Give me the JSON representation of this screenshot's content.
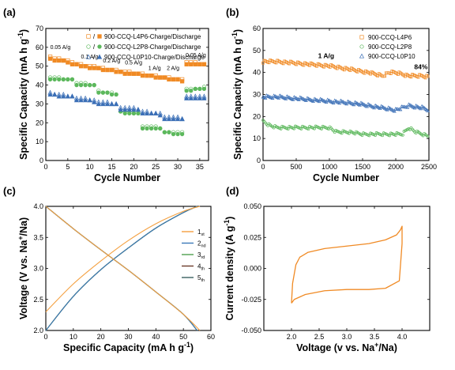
{
  "chart_data": [
    {
      "panel": "(a)",
      "type": "scatter",
      "xlabel": "Cycle Number",
      "ylabel": "Specific Capacity (mA h g⁻¹)",
      "xlim": [
        0,
        37
      ],
      "ylim": [
        0,
        70
      ],
      "xticks": [
        0,
        5,
        10,
        15,
        20,
        25,
        30,
        35
      ],
      "yticks": [
        0,
        10,
        20,
        30,
        40,
        50,
        60,
        70
      ],
      "legend_position": "top-right",
      "legend_separator": "/",
      "rate_labels": [
        {
          "text": "0.05 A/g",
          "x": 1,
          "y": 59
        },
        {
          "text": "0.1 A/g",
          "x": 8,
          "y": 54
        },
        {
          "text": "0.2 A/g",
          "x": 13,
          "y": 52
        },
        {
          "text": "0.5 A/g",
          "x": 18,
          "y": 51
        },
        {
          "text": "1 A/g",
          "x": 23.3,
          "y": 48
        },
        {
          "text": "2 A/g",
          "x": 27.5,
          "y": 48
        },
        {
          "text": "0.05 A/g",
          "x": 31.8,
          "y": 55
        }
      ],
      "series": [
        {
          "name": "900-CCQ-L4P6-Charge/Discharge",
          "color": "#f08a24",
          "marker": "square",
          "x": [
            1,
            2,
            3,
            4,
            5,
            6,
            7,
            8,
            9,
            10,
            11,
            12,
            13,
            14,
            15,
            16,
            17,
            18,
            19,
            20,
            21,
            22,
            23,
            24,
            25,
            26,
            27,
            28,
            29,
            30,
            31,
            32,
            33,
            34,
            35,
            36
          ],
          "charge": [
            55,
            54,
            54,
            53,
            53,
            52,
            51,
            51,
            50,
            50,
            50,
            49,
            49,
            48,
            48,
            48,
            47,
            47,
            47,
            46,
            46,
            46,
            45,
            45,
            45,
            44,
            44,
            44,
            43,
            43,
            43,
            52,
            52,
            52,
            51,
            51
          ],
          "discharge": [
            54,
            53,
            53,
            53,
            52,
            51,
            51,
            50,
            50,
            49,
            49,
            49,
            48,
            48,
            48,
            47,
            47,
            46,
            46,
            46,
            46,
            45,
            45,
            45,
            44,
            44,
            44,
            43,
            43,
            43,
            42,
            51,
            51,
            51,
            51,
            51
          ]
        },
        {
          "name": "900-CCQ-L2P8-Charge/Discharge",
          "color": "#5cb85c",
          "marker": "circle",
          "x": [
            1,
            2,
            3,
            4,
            5,
            6,
            7,
            8,
            9,
            10,
            11,
            12,
            13,
            14,
            15,
            16,
            17,
            18,
            19,
            20,
            21,
            22,
            23,
            24,
            25,
            26,
            27,
            28,
            29,
            30,
            31,
            32,
            33,
            34,
            35,
            36
          ],
          "charge": [
            44,
            44,
            44,
            43,
            43,
            43,
            41,
            41,
            41,
            40,
            40,
            37,
            36,
            36,
            36,
            35,
            26,
            26,
            26,
            25,
            25,
            18,
            18,
            18,
            18,
            17,
            15,
            15,
            15,
            15,
            15,
            38,
            38,
            38,
            38,
            39
          ],
          "discharge": [
            43,
            43,
            43,
            43,
            43,
            43,
            40,
            40,
            40,
            40,
            40,
            36,
            36,
            36,
            35,
            35,
            26,
            25,
            25,
            25,
            25,
            17,
            17,
            17,
            17,
            17,
            15,
            15,
            14,
            14,
            14,
            37,
            37,
            38,
            38,
            38
          ]
        },
        {
          "name": "900-CCQ-L0P10-Charge/Discharge",
          "color": "#3b6fb6",
          "marker": "triangle",
          "x": [
            1,
            2,
            3,
            4,
            5,
            6,
            7,
            8,
            9,
            10,
            11,
            12,
            13,
            14,
            15,
            16,
            17,
            18,
            19,
            20,
            21,
            22,
            23,
            24,
            25,
            26,
            27,
            28,
            29,
            30,
            31,
            32,
            33,
            34,
            35,
            36
          ],
          "charge": [
            36,
            35,
            35,
            35,
            34,
            34,
            33,
            33,
            33,
            32,
            32,
            31,
            31,
            31,
            30,
            30,
            28,
            28,
            28,
            28,
            27,
            26,
            26,
            25,
            25,
            25,
            23,
            23,
            23,
            23,
            22,
            34,
            34,
            34,
            34,
            34
          ],
          "discharge": [
            35,
            35,
            34,
            34,
            34,
            34,
            32,
            32,
            32,
            32,
            31,
            30,
            30,
            30,
            30,
            30,
            27,
            27,
            27,
            27,
            27,
            25,
            25,
            25,
            25,
            24,
            22,
            22,
            22,
            22,
            22,
            33,
            33,
            33,
            33,
            33
          ]
        }
      ]
    },
    {
      "panel": "(b)",
      "type": "scatter",
      "xlabel": "Cycle Number",
      "ylabel": "Specific Capacity (mA h g⁻¹)",
      "xlim": [
        0,
        2500
      ],
      "ylim": [
        0,
        60
      ],
      "xticks": [
        0,
        500,
        1000,
        1500,
        2000,
        2500
      ],
      "yticks": [
        0,
        10,
        20,
        30,
        40,
        50,
        60
      ],
      "legend_position": "top-right",
      "annotations": [
        {
          "text": "1 A/g",
          "x": 950,
          "y": 46.5
        },
        {
          "text": "84%",
          "x": 2380,
          "y": 41.5
        }
      ],
      "series": [
        {
          "name": "900-CCQ-L4P6",
          "color": "#f08a24",
          "marker": "square",
          "x": [
            0,
            200,
            400,
            600,
            800,
            1000,
            1200,
            1400,
            1600,
            1800,
            1900,
            2000,
            2200,
            2400,
            2500
          ],
          "y": [
            45,
            45,
            44.5,
            44,
            43.5,
            43,
            42,
            41,
            40,
            38.5,
            40,
            40,
            38.5,
            38.5,
            38
          ]
        },
        {
          "name": "900-CCQ-L2P8",
          "color": "#5cb85c",
          "marker": "circle",
          "x": [
            0,
            100,
            200,
            400,
            600,
            800,
            1000,
            1100,
            1300,
            1500,
            1700,
            1900,
            2100,
            2200,
            2300,
            2400,
            2500
          ],
          "y": [
            18,
            16,
            15,
            15,
            15,
            15,
            15,
            13,
            13,
            12,
            12,
            12,
            12,
            15,
            13,
            12,
            11
          ]
        },
        {
          "name": "900-CCQ-L0P10",
          "color": "#3b6fb6",
          "marker": "triangle",
          "x": [
            0,
            200,
            400,
            600,
            800,
            1000,
            1200,
            1400,
            1600,
            1800,
            2000,
            2200,
            2400,
            2500
          ],
          "y": [
            29,
            29,
            28.5,
            28,
            27.5,
            27,
            26.5,
            26,
            25,
            24,
            23,
            25,
            24,
            23
          ]
        }
      ]
    },
    {
      "panel": "(c)",
      "type": "line",
      "xlabel": "Specific Capacity (mA h g⁻¹)",
      "ylabel": "Voltage (V vs. Na⁺/Na)",
      "xlim": [
        0,
        60
      ],
      "ylim": [
        2.0,
        4.0
      ],
      "xticks": [
        0,
        10,
        20,
        30,
        40,
        50,
        60
      ],
      "yticks": [
        2.0,
        2.5,
        3.0,
        3.5,
        4.0
      ],
      "legend_position": "right",
      "series": [
        {
          "name": "1st",
          "base": "1",
          "sub": "st",
          "color": "#f4a040",
          "charge_x": [
            0,
            10,
            20,
            30,
            40,
            50,
            56
          ],
          "charge_y": [
            2.3,
            2.75,
            3.12,
            3.45,
            3.72,
            3.92,
            4.0
          ],
          "discharge_x": [
            0,
            10,
            20,
            30,
            40,
            50,
            56
          ],
          "discharge_y": [
            4.0,
            3.64,
            3.3,
            2.97,
            2.62,
            2.26,
            2.0
          ]
        },
        {
          "name": "2nd",
          "base": "2",
          "sub": "nd",
          "color": "#3a78b8",
          "charge_x": [
            0,
            10,
            20,
            30,
            40,
            50,
            55
          ],
          "charge_y": [
            2.0,
            2.55,
            2.98,
            3.33,
            3.65,
            3.9,
            4.0
          ],
          "discharge_x": [
            0,
            10,
            20,
            30,
            40,
            50,
            55
          ],
          "discharge_y": [
            4.0,
            3.64,
            3.3,
            2.97,
            2.62,
            2.26,
            2.0
          ]
        },
        {
          "name": "3rd",
          "base": "3",
          "sub": "rd",
          "color": "#50a050",
          "charge_x": [
            0,
            10,
            20,
            30,
            40,
            50,
            55
          ],
          "charge_y": [
            2.0,
            2.55,
            2.98,
            3.33,
            3.65,
            3.9,
            4.0
          ],
          "discharge_x": [
            0,
            10,
            20,
            30,
            40,
            50,
            55
          ],
          "discharge_y": [
            4.0,
            3.64,
            3.3,
            2.97,
            2.62,
            2.26,
            2.0
          ]
        },
        {
          "name": "4th",
          "base": "4",
          "sub": "th",
          "color": "#6b3a2a",
          "charge_x": [
            0,
            10,
            20,
            30,
            40,
            50,
            55
          ],
          "charge_y": [
            2.0,
            2.55,
            2.98,
            3.33,
            3.65,
            3.9,
            4.0
          ],
          "discharge_x": [
            0,
            10,
            20,
            30,
            40,
            50,
            55
          ],
          "discharge_y": [
            4.0,
            3.64,
            3.3,
            2.97,
            2.62,
            2.26,
            2.0
          ]
        },
        {
          "name": "5th",
          "base": "5",
          "sub": "th",
          "color": "#3a6060",
          "charge_x": [
            0,
            10,
            20,
            30,
            40,
            50,
            55
          ],
          "charge_y": [
            2.0,
            2.55,
            2.98,
            3.33,
            3.65,
            3.9,
            4.0
          ],
          "discharge_x": [
            0,
            10,
            20,
            30,
            40,
            50,
            55
          ],
          "discharge_y": [
            4.0,
            3.64,
            3.3,
            2.97,
            2.62,
            2.26,
            2.0
          ]
        }
      ]
    },
    {
      "panel": "(d)",
      "type": "line",
      "xlabel": "Voltage (v vs. Na⁺/Na)",
      "ylabel": "Current density (A g⁻¹)",
      "xlim": [
        1.5,
        4.5
      ],
      "ylim": [
        -0.05,
        0.05
      ],
      "xticks": [
        2.0,
        2.5,
        3.0,
        3.5,
        4.0
      ],
      "yticks": [
        0.05,
        0.025,
        0.0,
        -0.025,
        -0.05
      ],
      "ytick_labels": [
        "0.050",
        "0.025",
        "0.000",
        "-0.025",
        "-0.050"
      ],
      "xtick_labels": [
        "2.0",
        "2.5",
        "3.0",
        "3.5",
        "4.0"
      ],
      "series": [
        {
          "color": "#f08a24",
          "x": [
            2.0,
            2.02,
            2.08,
            2.15,
            2.3,
            2.6,
            3.0,
            3.4,
            3.7,
            3.9,
            3.97,
            4.0,
            4.0,
            3.95,
            3.7,
            3.4,
            3.0,
            2.6,
            2.25,
            2.05,
            2.0
          ],
          "y": [
            -0.028,
            -0.012,
            0.003,
            0.009,
            0.013,
            0.016,
            0.018,
            0.02,
            0.023,
            0.027,
            0.031,
            0.034,
            0.02,
            -0.01,
            -0.016,
            -0.017,
            -0.017,
            -0.018,
            -0.021,
            -0.025,
            -0.028
          ]
        }
      ]
    }
  ],
  "labels": {
    "a": "(a)",
    "b": "(b)",
    "c": "(c)",
    "d": "(d)",
    "slash": "/"
  }
}
